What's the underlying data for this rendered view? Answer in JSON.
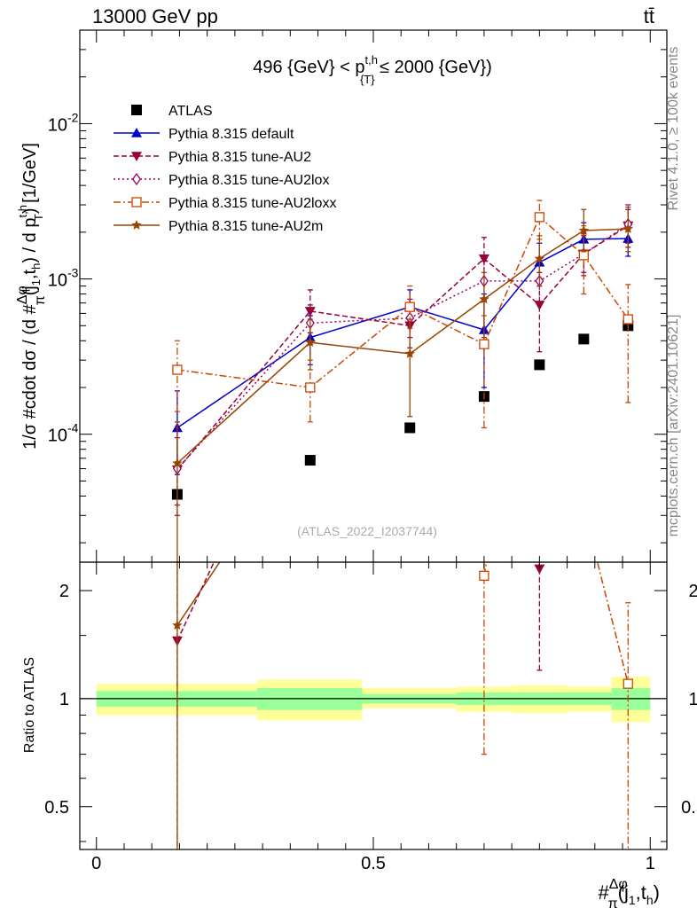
{
  "header": {
    "energy_label": "13000 GeV pp",
    "process_label": "tt̄",
    "side_label_top": "Rivet 4.1.0, ≥ 100k events",
    "side_label_bottom": "mcplots.cern.ch [arXiv:2401.10621]",
    "watermark": "(ATLAS_2022_I2037744)"
  },
  "chart_data": [
    {
      "type": "line",
      "panel": "main",
      "title": "496 {GeV} < p^{t,h}_{T} ≤ 2000 {GeV})",
      "title_parts": {
        "main": "496 {GeV} < p",
        "sup": "t,h",
        "sub": "{T}",
        "tail": " ≤ 2000 {GeV})"
      },
      "ylabel": "1/σ #cdot dσ / (d #Δφ/π(j1,th) / d pTt,h) [1/GeV]",
      "ylabel_parts": {
        "p1": "1/σ #cdot dσ / (d #",
        "frac_num": "Δφ",
        "frac_den": "π",
        "p2": "(j",
        "s1": "1",
        "p3": ",t",
        "s2": "h",
        "p4": ") / d p",
        "sup": "t,h",
        "sub": "T",
        "p5": ") [1/GeV]"
      },
      "xlim": [
        -0.03,
        1.03
      ],
      "ylim": [
        1.5e-05,
        0.04
      ],
      "yscale": "log",
      "yticks": [
        0.0001,
        0.001,
        0.01
      ],
      "ytick_labels": [
        "10",
        "10",
        "10"
      ],
      "ytick_exponents": [
        "-4",
        "-3",
        "-2"
      ],
      "x": [
        0.146,
        0.386,
        0.566,
        0.7,
        0.8,
        0.88,
        0.96
      ],
      "series": [
        {
          "name": "ATLAS",
          "color": "#000000",
          "marker": "square",
          "line": "none",
          "values": [
            4.1e-05,
            6.8e-05,
            0.00011,
            0.000175,
            0.00028,
            0.00041,
            0.0005
          ],
          "lo": [
            4.1e-05,
            6.8e-05,
            0.00011,
            0.000175,
            0.00028,
            0.00041,
            0.0005
          ],
          "hi": [
            4.1e-05,
            6.8e-05,
            0.00011,
            0.000175,
            0.00028,
            0.00041,
            0.0005
          ]
        },
        {
          "name": "Pythia 8.315 default",
          "color": "#0000cc",
          "marker": "triangle-up",
          "line": "solid",
          "values": [
            0.00011,
            0.00042,
            0.00066,
            0.00047,
            0.00128,
            0.0018,
            0.00182
          ],
          "lo": [
            5.5e-05,
            0.00028,
            0.0005,
            0.0002,
            0.0009,
            0.0014,
            0.0014
          ],
          "hi": [
            0.00019,
            0.00058,
            0.00085,
            0.0008,
            0.0017,
            0.0023,
            0.0023
          ]
        },
        {
          "name": "Pythia 8.315 tune-AU2",
          "color": "#990033",
          "marker": "triangle-down",
          "line": "dashed",
          "values": [
            5.9e-05,
            0.00062,
            0.0005,
            0.00135,
            0.00068,
            0.00145,
            0.0022
          ],
          "lo": [
            3e-05,
            0.00045,
            0.00036,
            0.00098,
            0.00034,
            0.00105,
            0.0016
          ],
          "hi": [
            0.00011,
            0.00085,
            0.0007,
            0.00185,
            0.0011,
            0.0019,
            0.0028
          ]
        },
        {
          "name": "Pythia 8.315 tune-AU2lox",
          "color": "#990066",
          "marker": "diamond-open",
          "line": "dotted",
          "values": [
            6e-05,
            0.00052,
            0.00056,
            0.00097,
            0.00097,
            0.00145,
            0.00225
          ],
          "lo": [
            3.5e-05,
            0.0004,
            0.00042,
            0.00072,
            0.0007,
            0.0011,
            0.0017
          ],
          "hi": [
            9.5e-05,
            0.00068,
            0.00074,
            0.0013,
            0.0013,
            0.00195,
            0.003
          ]
        },
        {
          "name": "Pythia 8.315 tune-AU2loxx",
          "color": "#cc4400",
          "marker": "square-open",
          "line": "dashdot",
          "values": [
            0.00026,
            0.0002,
            0.00066,
            0.00038,
            0.0025,
            0.00142,
            0.00055
          ],
          "lo": [
            0.00014,
            0.00012,
            0.00048,
            0.00011,
            0.0018,
            0.0008,
            0.00016
          ],
          "hi": [
            0.0004,
            0.0003,
            0.0009,
            0.00058,
            0.0032,
            0.0022,
            0.00092
          ]
        },
        {
          "name": "Pythia 8.315 tune-AU2m",
          "color": "#994400",
          "marker": "star",
          "line": "solid",
          "values": [
            6.5e-05,
            0.00039,
            0.00033,
            0.00074,
            0.00135,
            0.00205,
            0.0021
          ],
          "lo": [
            1.5e-05,
            0.00026,
            0.00013,
            0.00042,
            0.0009,
            0.0015,
            0.0015
          ],
          "hi": [
            0.00012,
            0.00055,
            0.00055,
            0.0011,
            0.0019,
            0.0028,
            0.0029
          ]
        }
      ],
      "legend": "top-left"
    },
    {
      "type": "line",
      "panel": "ratio",
      "ylabel": "Ratio to ATLAS",
      "xlabel": "#Δφ/π(j1,th)",
      "xlabel_parts": {
        "p1": "#",
        "frac_num": "Δφ",
        "frac_den": "π",
        "p2": "(j",
        "s1": "1",
        "p3": ",t",
        "s2": "h",
        "p4": ")"
      },
      "xlim": [
        -0.03,
        1.03
      ],
      "ylim": [
        0.38,
        2.4
      ],
      "yscale": "log",
      "xticks": [
        0,
        0.5,
        1
      ],
      "xtick_labels": [
        "0",
        "0.5",
        "1"
      ],
      "yticks": [
        0.5,
        1,
        2
      ],
      "ytick_labels": [
        "0.5",
        "1",
        "2"
      ],
      "bands": {
        "edges": [
          0,
          0.29,
          0.48,
          0.65,
          0.75,
          0.85,
          0.93,
          1.0
        ],
        "inner_lo": [
          0.95,
          0.93,
          0.97,
          0.96,
          0.96,
          0.96,
          0.93
        ],
        "inner_hi": [
          1.05,
          1.07,
          1.03,
          1.04,
          1.04,
          1.04,
          1.07
        ],
        "outer_lo": [
          0.9,
          0.87,
          0.94,
          0.92,
          0.91,
          0.92,
          0.86
        ],
        "outer_hi": [
          1.1,
          1.13,
          1.07,
          1.08,
          1.09,
          1.08,
          1.15
        ],
        "inner_color": "#99ff99",
        "outer_color": "#ffff99"
      },
      "series": [
        {
          "name": "Pythia 8.315 tune-AU2",
          "color": "#990033",
          "marker": "triangle-down",
          "line": "dashed",
          "x": [
            0.146,
            0.8
          ],
          "values": [
            1.45,
            2.3
          ],
          "lo": [
            0.3,
            1.2
          ],
          "hi": [
            2.7,
            3.5
          ]
        },
        {
          "name": "Pythia 8.315 tune-AU2loxx",
          "color": "#cc4400",
          "marker": "square-open",
          "line": "dashdot",
          "x": [
            0.7,
            0.96
          ],
          "values": [
            2.2,
            1.1
          ],
          "lo": [
            0.7,
            0.3
          ],
          "hi": [
            3.3,
            1.85
          ]
        },
        {
          "name": "Pythia 8.315 tune-AU2m",
          "color": "#994400",
          "marker": "star",
          "line": "solid",
          "x": [
            0.146
          ],
          "values": [
            1.6
          ],
          "lo": [
            0.3
          ],
          "hi": [
            2.5
          ]
        }
      ],
      "offscale_segments": [
        {
          "name": "Pythia 8.315 tune-AU2m",
          "color": "#994400",
          "line": "solid",
          "x": [
            0.146,
            0.386
          ],
          "values": [
            1.6,
            5.7
          ]
        },
        {
          "name": "Pythia 8.315 tune-AU2",
          "color": "#990033",
          "line": "dashed",
          "x": [
            0.146,
            0.386
          ],
          "values": [
            1.45,
            9.0
          ]
        },
        {
          "name": "Pythia 8.315 tune-AU2loxx",
          "color": "#cc4400",
          "line": "dashdot",
          "x": [
            0.88,
            0.96
          ],
          "values": [
            3.4,
            1.1
          ]
        },
        {
          "name": "Pythia 8.315 tune-AU2loxx",
          "color": "#cc4400",
          "line": "dashdot",
          "x": [
            0.7,
            0.71
          ],
          "values": [
            2.2,
            2.7
          ]
        }
      ]
    }
  ]
}
